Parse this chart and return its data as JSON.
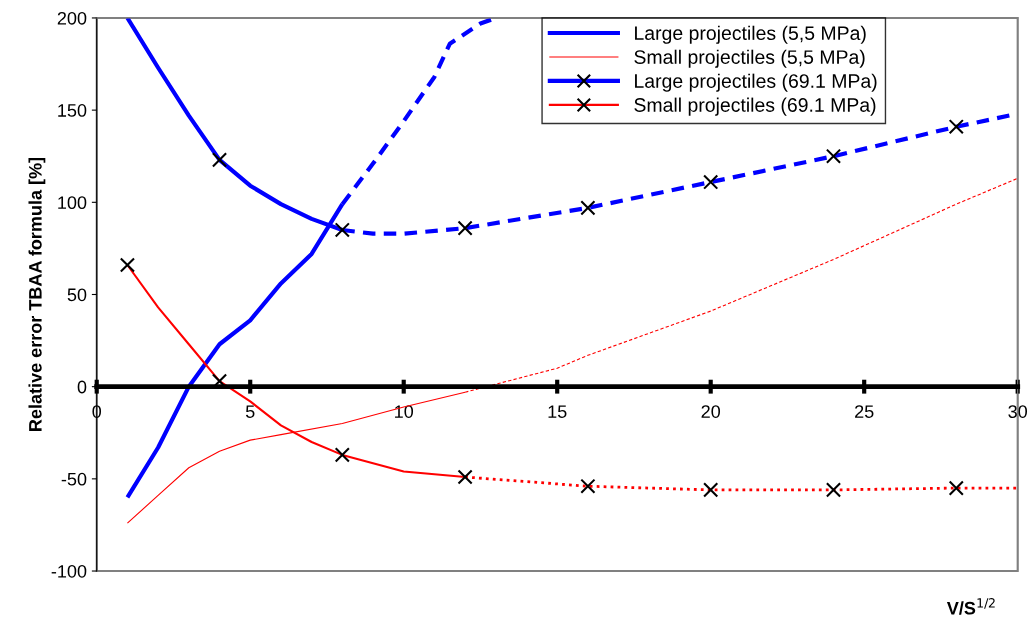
{
  "chart_data": {
    "type": "line",
    "xlabel": "V/S$^{1/2}$",
    "ylabel": "Relative error TBAA formula [%]",
    "xlim": [
      0,
      30
    ],
    "ylim": [
      -100,
      200
    ],
    "xticks": [
      0,
      5,
      10,
      15,
      20,
      25,
      30
    ],
    "yticks": [
      -100,
      -50,
      0,
      50,
      100,
      150,
      200
    ],
    "grid": false,
    "legend": "top",
    "marker": "none",
    "series": [
      {
        "name": "Large projectiles (5,5 MPa)",
        "color": "#0000ff",
        "line_style": "solid",
        "x": [
          1,
          2,
          3,
          4,
          5,
          6,
          7,
          8
        ],
        "values": [
          -60,
          -33,
          0,
          23,
          36,
          56,
          72,
          99
        ]
      },
      {
        "color": "#0000ff",
        "line_style": "dashed",
        "x": [
          8,
          9,
          10,
          11,
          11.5,
          12.5,
          13
        ],
        "values": [
          99,
          121,
          144,
          168,
          186,
          197,
          200
        ]
      },
      {
        "name": "Small projectiles (5,5 MPa)",
        "color": "#ff0000",
        "line_style": "solid",
        "x": [
          1,
          2,
          3,
          4,
          5,
          6,
          8,
          10,
          12
        ],
        "values": [
          -74,
          -59,
          -44,
          -35,
          -29,
          -26,
          -20,
          -11,
          -3
        ]
      },
      {
        "color": "#ff0000",
        "line_style": "dashed",
        "x": [
          12,
          15,
          16,
          20,
          24,
          28,
          30
        ],
        "values": [
          -3,
          10,
          17,
          41,
          69,
          99,
          113
        ]
      },
      {
        "color": "#0000ff",
        "line_style": "solid",
        "x": [
          1,
          2,
          3,
          4,
          5,
          6,
          7,
          8
        ],
        "values": [
          200,
          173,
          147,
          123,
          109,
          99,
          91,
          85
        ]
      },
      {
        "name": "Large projectiles (69.1 MPa)",
        "type": "scatter",
        "marker": "cross",
        "color": "#000000",
        "x": [
          4,
          8,
          12,
          16,
          20,
          24,
          28
        ],
        "values": [
          123,
          85,
          86,
          97,
          111,
          125,
          141
        ]
      },
      {
        "color": "#0000ff",
        "line_style": "dashed",
        "x": [
          8,
          9,
          10,
          12,
          16,
          20,
          24,
          28,
          30
        ],
        "values": [
          85,
          83,
          83,
          86,
          97,
          111,
          125,
          141,
          148
        ]
      },
      {
        "color": "#ff0000",
        "line_style": "solid",
        "x": [
          1,
          2,
          3,
          4,
          5,
          6,
          7,
          8,
          10,
          12
        ],
        "values": [
          66,
          43,
          23,
          3,
          -8,
          -21,
          -30,
          -37,
          -46,
          -49
        ]
      },
      {
        "name": "Small projectiles (69.1 MPa)",
        "type": "scatter",
        "marker": "cross",
        "color": "#000000",
        "x": [
          1,
          4,
          8,
          12,
          16,
          20,
          24,
          28
        ],
        "values": [
          66,
          3,
          -37,
          -49,
          -54,
          -56,
          -56,
          -55
        ]
      },
      {
        "color": "#ff0000",
        "line_style": "dotted",
        "x": [
          12,
          16,
          20,
          24,
          28,
          30
        ],
        "values": [
          -49,
          -54,
          -56,
          -56,
          -55,
          -55
        ]
      }
    ]
  }
}
